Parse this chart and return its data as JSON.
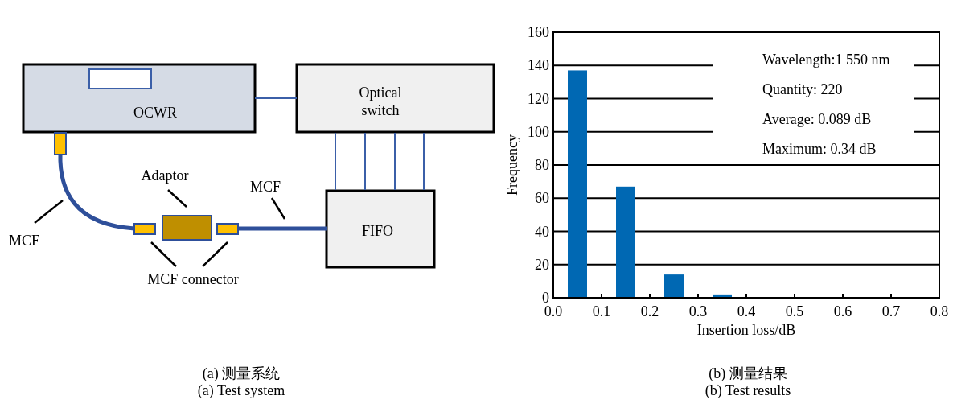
{
  "chart_data": [
    {
      "type": "other",
      "annotations": [
        "OCWR",
        "Optical\nswitch",
        "FIFO",
        "Adaptor",
        "MCF",
        "MCF",
        "MCF connector",
        "(a) 测量系统",
        "(a) Test system"
      ]
    },
    {
      "type": "bar",
      "x": [
        0.05,
        0.15,
        0.25,
        0.35
      ],
      "values": [
        137,
        67,
        14,
        2
      ],
      "color": "#0068b3",
      "xlim": [
        0,
        0.8
      ],
      "xticks": [
        {
          "value": 0,
          "label": "0.0"
        },
        0.1,
        0.2,
        0.3,
        0.4,
        0.5,
        0.6,
        0.7,
        0.8
      ],
      "ylim": [
        0,
        160
      ],
      "yticks": [
        0,
        20,
        40,
        60,
        80,
        100,
        120,
        140,
        160
      ],
      "grid": "y",
      "xlabel": "Insertion loss/dB",
      "ylabel": "Frequency",
      "annotations": [
        "Wavelength:1 550 nm",
        "Quantity: 220",
        "Average: 0.089 dB",
        "Maximum: 0.34 dB",
        "(b) 测量结果",
        "(b) Test results"
      ]
    }
  ]
}
